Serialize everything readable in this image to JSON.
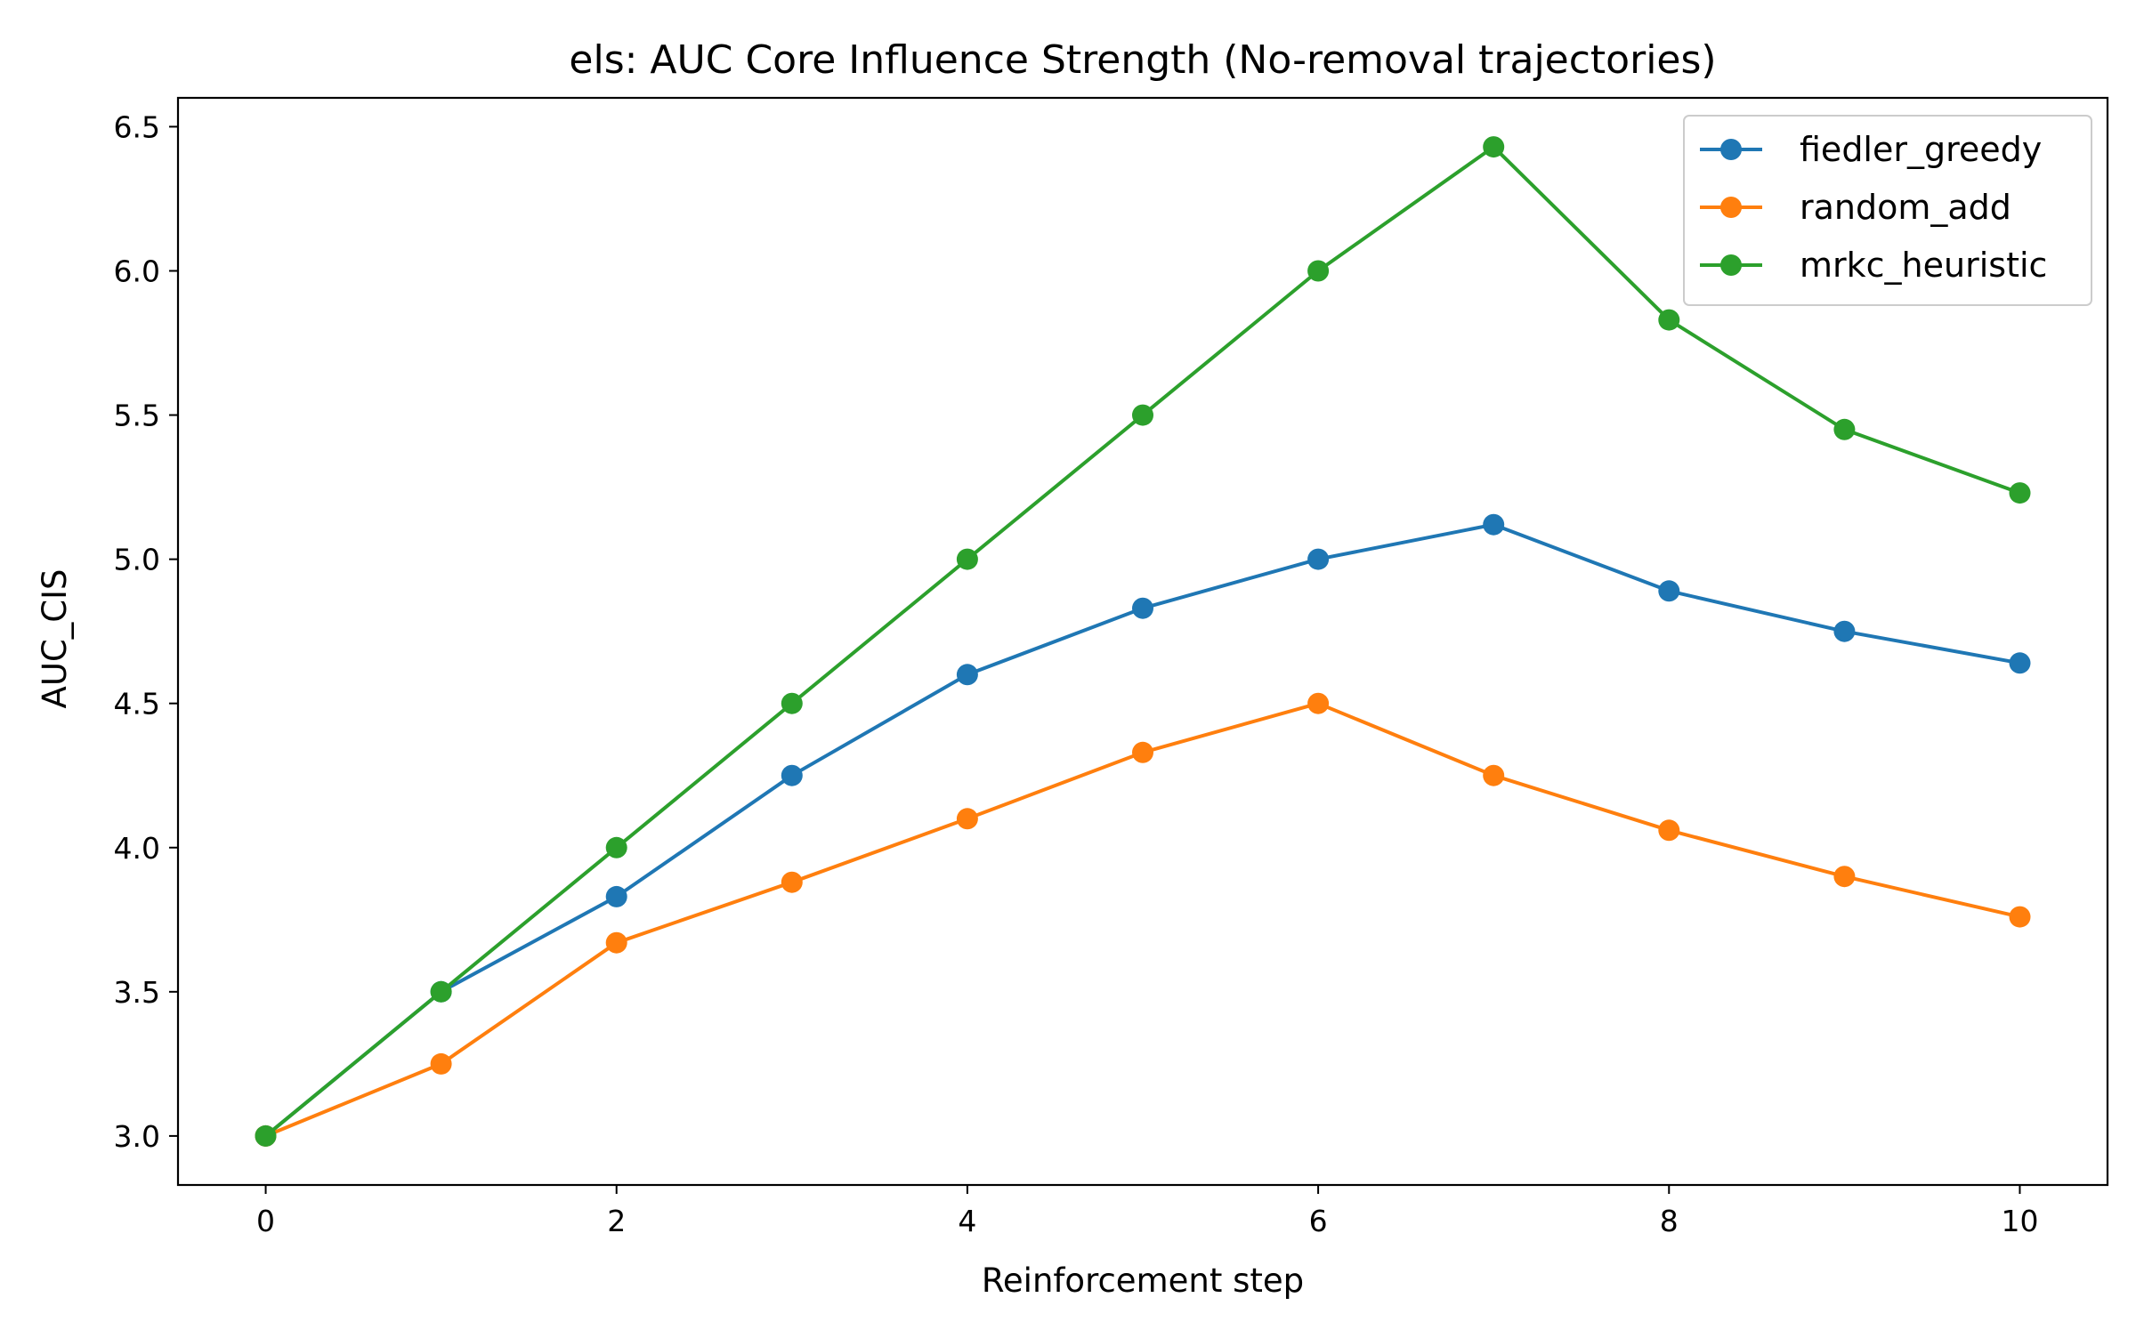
{
  "chart_data": {
    "type": "line",
    "title": "els: AUC Core Influence Strength (No-removal trajectories)",
    "xlabel": "Reinforcement step",
    "ylabel": "AUC_CIS",
    "x": [
      0,
      1,
      2,
      3,
      4,
      5,
      6,
      7,
      8,
      9,
      10
    ],
    "xlim": [
      -0.5,
      10.5
    ],
    "ylim": [
      2.83,
      6.6
    ],
    "x_ticks": [
      0,
      2,
      4,
      6,
      8,
      10
    ],
    "y_ticks": [
      3.0,
      3.5,
      4.0,
      4.5,
      5.0,
      5.5,
      6.0,
      6.5
    ],
    "grid": false,
    "legend_position": "top-right",
    "markers": "circle",
    "series": [
      {
        "name": "fiedler_greedy",
        "color": "#1f77b4",
        "values": [
          3.0,
          3.5,
          3.83,
          4.25,
          4.6,
          4.83,
          5.0,
          5.12,
          4.89,
          4.75,
          4.64
        ]
      },
      {
        "name": "random_add",
        "color": "#ff7f0e",
        "values": [
          3.0,
          3.25,
          3.67,
          3.88,
          4.1,
          4.33,
          4.5,
          4.25,
          4.06,
          3.9,
          3.76
        ]
      },
      {
        "name": "mrkc_heuristic",
        "color": "#2ca02c",
        "values": [
          3.0,
          3.5,
          4.0,
          4.5,
          5.0,
          5.5,
          6.0,
          6.43,
          5.83,
          5.45,
          5.23
        ]
      }
    ]
  }
}
